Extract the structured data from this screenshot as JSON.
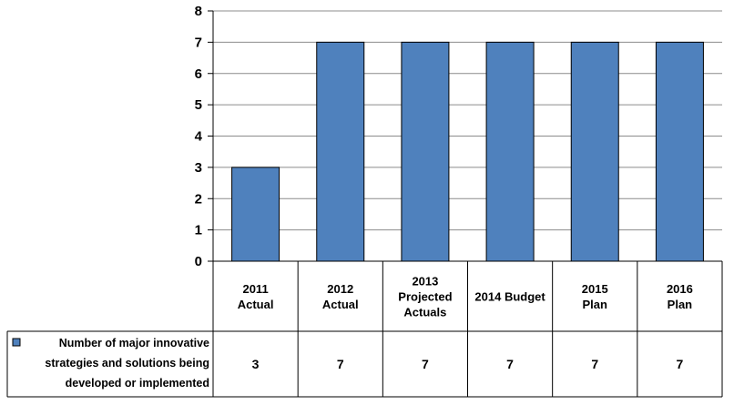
{
  "chart_data": {
    "type": "bar",
    "categories": [
      [
        "2011",
        "Actual"
      ],
      [
        "2012",
        "Actual"
      ],
      [
        "2013",
        "Projected",
        "Actuals"
      ],
      [
        "2014 Budget"
      ],
      [
        "2015",
        "Plan"
      ],
      [
        "2016",
        "Plan"
      ]
    ],
    "series": [
      {
        "name": [
          "Number of major innovative",
          "strategies and solutions being",
          "developed or implemented"
        ],
        "values": [
          3,
          7,
          7,
          7,
          7,
          7
        ],
        "color": "#4f81bd"
      }
    ],
    "table_values": [
      "3",
      "7",
      "7",
      "7",
      "7",
      "7"
    ],
    "ylim": [
      0,
      8
    ],
    "yticks": [
      0,
      1,
      2,
      3,
      4,
      5,
      6,
      7,
      8
    ],
    "grid": true,
    "legend": "data-table-left",
    "title": "",
    "xlabel": "",
    "ylabel": ""
  }
}
